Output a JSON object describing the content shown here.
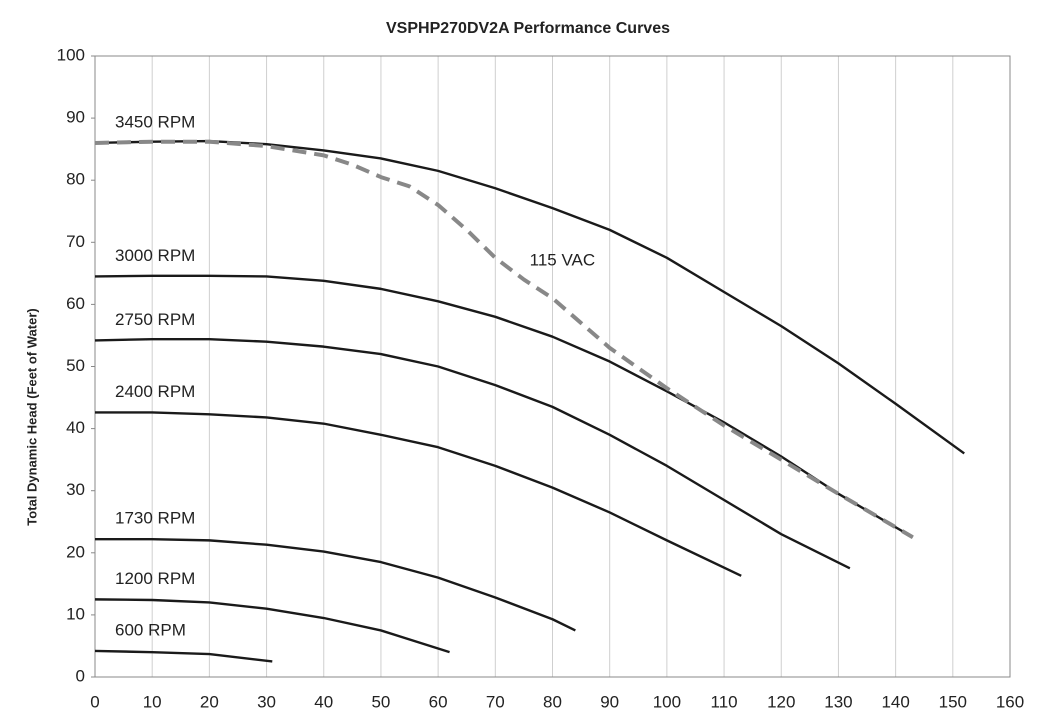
{
  "chart_data": {
    "type": "line",
    "title": "VSPHP270DV2A Performance Curves",
    "y_label": "Total Dynamic Head (Feet of Water)",
    "xlim": [
      0,
      160
    ],
    "xticks": [
      0,
      10,
      20,
      30,
      40,
      50,
      60,
      70,
      80,
      90,
      100,
      110,
      120,
      130,
      140,
      150,
      160
    ],
    "ylim": [
      0,
      100
    ],
    "yticks": [
      0,
      10,
      20,
      30,
      40,
      50,
      60,
      70,
      80,
      90,
      100
    ],
    "grid": "x",
    "series": [
      {
        "name": "3450 RPM",
        "color": "#1a1a1a",
        "style": "solid",
        "x": [
          0,
          10,
          20,
          30,
          40,
          50,
          60,
          70,
          80,
          90,
          100,
          110,
          120,
          130,
          140,
          152
        ],
        "values": [
          86,
          86.2,
          86.3,
          85.8,
          84.8,
          83.5,
          81.5,
          78.7,
          75.5,
          72,
          67.5,
          62,
          56.5,
          50.5,
          44,
          36
        ]
      },
      {
        "name": "3000 RPM",
        "color": "#1a1a1a",
        "style": "solid",
        "x": [
          0,
          10,
          20,
          30,
          40,
          50,
          60,
          70,
          80,
          90,
          100,
          110,
          120,
          130,
          143
        ],
        "values": [
          64.5,
          64.6,
          64.6,
          64.5,
          63.8,
          62.5,
          60.5,
          58,
          54.8,
          50.8,
          46,
          41,
          35.5,
          29.5,
          22.5
        ]
      },
      {
        "name": "2750 RPM",
        "color": "#1a1a1a",
        "style": "solid",
        "x": [
          0,
          10,
          20,
          30,
          40,
          50,
          60,
          70,
          80,
          90,
          100,
          110,
          120,
          132
        ],
        "values": [
          54.2,
          54.4,
          54.4,
          54,
          53.2,
          52,
          50,
          47,
          43.5,
          39,
          34,
          28.5,
          23,
          17.5
        ]
      },
      {
        "name": "2400 RPM",
        "color": "#1a1a1a",
        "style": "solid",
        "x": [
          0,
          10,
          20,
          30,
          40,
          50,
          60,
          70,
          80,
          90,
          100,
          113
        ],
        "values": [
          42.6,
          42.6,
          42.3,
          41.8,
          40.8,
          39,
          37,
          34,
          30.5,
          26.5,
          22,
          16.3
        ]
      },
      {
        "name": "1730 RPM",
        "color": "#1a1a1a",
        "style": "solid",
        "x": [
          0,
          10,
          20,
          30,
          40,
          50,
          60,
          70,
          80,
          84
        ],
        "values": [
          22.2,
          22.2,
          22,
          21.3,
          20.2,
          18.5,
          16,
          12.8,
          9.3,
          7.5
        ]
      },
      {
        "name": "1200 RPM",
        "color": "#1a1a1a",
        "style": "solid",
        "x": [
          0,
          10,
          20,
          30,
          40,
          50,
          62
        ],
        "values": [
          12.5,
          12.4,
          12,
          11,
          9.5,
          7.5,
          4
        ]
      },
      {
        "name": "600 RPM",
        "color": "#1a1a1a",
        "style": "solid",
        "x": [
          0,
          10,
          20,
          31
        ],
        "values": [
          4.2,
          4,
          3.7,
          2.5
        ]
      },
      {
        "name": "115 VAC",
        "color": "#888888",
        "style": "dashed",
        "x": [
          0,
          10,
          20,
          30,
          40,
          45,
          50,
          55,
          60,
          65,
          70,
          75,
          80,
          90,
          100,
          110,
          120,
          130,
          143
        ],
        "values": [
          86,
          86.2,
          86.2,
          85.5,
          84,
          82.5,
          80.5,
          79,
          76,
          72,
          67.5,
          64,
          61,
          53,
          46.5,
          40.5,
          35,
          29.5,
          22.5
        ]
      }
    ]
  }
}
